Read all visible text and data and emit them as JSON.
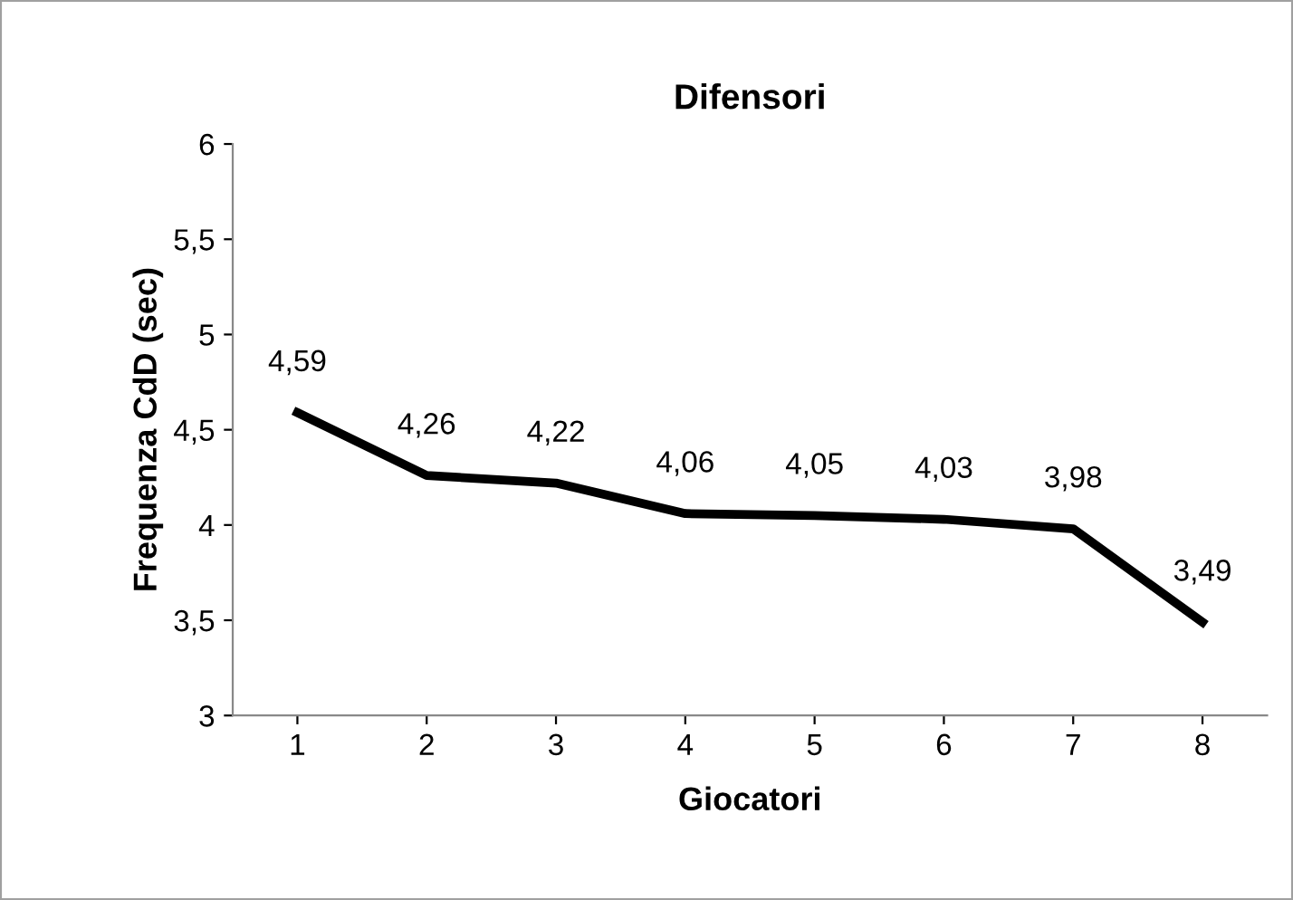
{
  "chart_data": {
    "type": "line",
    "title": "Difensori",
    "xlabel": "Giocatori",
    "ylabel": "Frequenza CdD (sec)",
    "categories": [
      "1",
      "2",
      "3",
      "4",
      "5",
      "6",
      "7",
      "8"
    ],
    "series": [
      {
        "color": "#000000",
        "values": [
          4.59,
          4.26,
          4.22,
          4.06,
          4.05,
          4.03,
          3.98,
          3.49
        ],
        "value_labels": [
          "4,59",
          "4,26",
          "4,22",
          "4,06",
          "4,05",
          "4,03",
          "3,98",
          "3,49"
        ]
      }
    ],
    "ylim": [
      3,
      6
    ],
    "yticks": [
      3,
      {
        "value": 3.5,
        "label": "3,5"
      },
      4,
      {
        "value": 4.5,
        "label": "4,5"
      },
      5,
      {
        "value": 5.5,
        "label": "5,5"
      },
      6
    ],
    "grid": false,
    "legend": false,
    "marker": "none",
    "line_style": "solid"
  }
}
